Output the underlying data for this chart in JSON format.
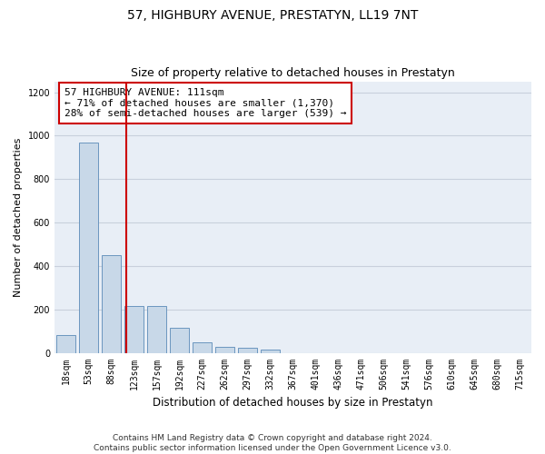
{
  "title": "57, HIGHBURY AVENUE, PRESTATYN, LL19 7NT",
  "subtitle": "Size of property relative to detached houses in Prestatyn",
  "xlabel": "Distribution of detached houses by size in Prestatyn",
  "ylabel": "Number of detached properties",
  "bar_labels": [
    "18sqm",
    "53sqm",
    "88sqm",
    "123sqm",
    "157sqm",
    "192sqm",
    "227sqm",
    "262sqm",
    "297sqm",
    "332sqm",
    "367sqm",
    "401sqm",
    "436sqm",
    "471sqm",
    "506sqm",
    "541sqm",
    "576sqm",
    "610sqm",
    "645sqm",
    "680sqm",
    "715sqm"
  ],
  "bar_values": [
    80,
    970,
    450,
    215,
    215,
    115,
    48,
    27,
    25,
    14,
    0,
    0,
    0,
    0,
    0,
    0,
    0,
    0,
    0,
    0,
    0
  ],
  "bar_color": "#c8d8e8",
  "bar_edge_color": "#5a8ab8",
  "grid_color": "#c8d0dc",
  "background_color": "#e8eef6",
  "vline_color": "#cc0000",
  "vline_pos": 2.64,
  "annotation_text": "57 HIGHBURY AVENUE: 111sqm\n← 71% of detached houses are smaller (1,370)\n28% of semi-detached houses are larger (539) →",
  "annotation_box_facecolor": "#ffffff",
  "annotation_box_edgecolor": "#cc0000",
  "ylim": [
    0,
    1250
  ],
  "yticks": [
    0,
    200,
    400,
    600,
    800,
    1000,
    1200
  ],
  "title_fontsize": 10,
  "subtitle_fontsize": 9,
  "ylabel_fontsize": 8,
  "xlabel_fontsize": 8.5,
  "tick_fontsize": 7,
  "annotation_fontsize": 8,
  "footer": "Contains HM Land Registry data © Crown copyright and database right 2024.\nContains public sector information licensed under the Open Government Licence v3.0.",
  "footer_fontsize": 6.5
}
